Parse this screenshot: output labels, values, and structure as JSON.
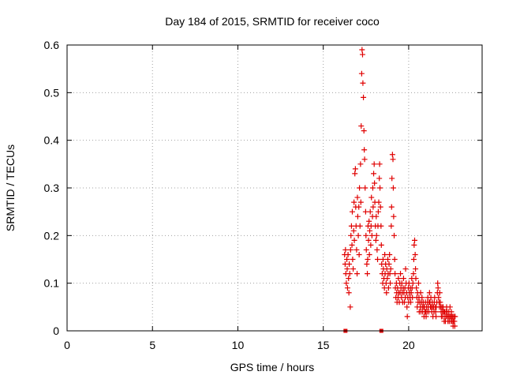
{
  "chart_data": {
    "type": "scatter",
    "title": "Day 184 of 2015, SRMTID for receiver coco",
    "xlabel": "GPS time / hours",
    "ylabel": "SRMTID / TECUs",
    "xlim": [
      0,
      24.3
    ],
    "ylim": [
      0,
      0.6
    ],
    "xticks": [
      "0",
      "5",
      "10",
      "15",
      "20"
    ],
    "yticks": [
      "0",
      "0.1",
      "0.2",
      "0.3",
      "0.4",
      "0.5",
      "0.6"
    ],
    "grid": true,
    "marker": "plus",
    "color": "#e00000",
    "series": [
      {
        "name": "SRMTID",
        "points": [
          [
            16.25,
            0.16
          ],
          [
            16.28,
            0.14
          ],
          [
            16.3,
            0.17
          ],
          [
            16.32,
            0.12
          ],
          [
            16.35,
            0.1
          ],
          [
            16.38,
            0.15
          ],
          [
            16.4,
            0.13
          ],
          [
            16.42,
            0.09
          ],
          [
            16.45,
            0.16
          ],
          [
            16.48,
            0.11
          ],
          [
            16.5,
            0.08
          ],
          [
            16.52,
            0.14
          ],
          [
            16.55,
            0.12
          ],
          [
            16.58,
            0.05
          ],
          [
            16.6,
            0.17
          ],
          [
            16.62,
            0.2
          ],
          [
            16.65,
            0.22
          ],
          [
            16.68,
            0.18
          ],
          [
            16.7,
            0.25
          ],
          [
            16.72,
            0.15
          ],
          [
            16.75,
            0.13
          ],
          [
            16.78,
            0.21
          ],
          [
            16.8,
            0.27
          ],
          [
            16.82,
            0.19
          ],
          [
            16.85,
            0.33
          ],
          [
            16.88,
            0.34
          ],
          [
            16.9,
            0.26
          ],
          [
            16.92,
            0.22
          ],
          [
            16.95,
            0.17
          ],
          [
            16.98,
            0.12
          ],
          [
            17.0,
            0.28
          ],
          [
            17.02,
            0.24
          ],
          [
            17.05,
            0.2
          ],
          [
            17.08,
            0.26
          ],
          [
            17.1,
            0.16
          ],
          [
            17.12,
            0.3
          ],
          [
            17.15,
            0.22
          ],
          [
            17.18,
            0.35
          ],
          [
            17.2,
            0.27
          ],
          [
            17.22,
            0.43
          ],
          [
            17.25,
            0.54
          ],
          [
            17.27,
            0.59
          ],
          [
            17.3,
            0.58
          ],
          [
            17.32,
            0.52
          ],
          [
            17.35,
            0.49
          ],
          [
            17.38,
            0.42
          ],
          [
            17.4,
            0.38
          ],
          [
            17.42,
            0.36
          ],
          [
            17.45,
            0.3
          ],
          [
            17.48,
            0.25
          ],
          [
            17.5,
            0.2
          ],
          [
            17.52,
            0.17
          ],
          [
            17.55,
            0.14
          ],
          [
            17.58,
            0.12
          ],
          [
            17.6,
            0.15
          ],
          [
            17.62,
            0.22
          ],
          [
            17.65,
            0.19
          ],
          [
            17.68,
            0.23
          ],
          [
            17.7,
            0.16
          ],
          [
            17.72,
            0.21
          ],
          [
            17.75,
            0.25
          ],
          [
            17.78,
            0.18
          ],
          [
            17.8,
            0.22
          ],
          [
            17.82,
            0.28
          ],
          [
            17.85,
            0.2
          ],
          [
            17.88,
            0.24
          ],
          [
            17.9,
            0.3
          ],
          [
            17.92,
            0.26
          ],
          [
            17.95,
            0.33
          ],
          [
            17.98,
            0.35
          ],
          [
            18.0,
            0.31
          ],
          [
            18.02,
            0.27
          ],
          [
            18.05,
            0.22
          ],
          [
            18.08,
            0.19
          ],
          [
            18.1,
            0.24
          ],
          [
            18.12,
            0.2
          ],
          [
            18.15,
            0.17
          ],
          [
            18.18,
            0.15
          ],
          [
            18.2,
            0.22
          ],
          [
            18.22,
            0.25
          ],
          [
            18.25,
            0.27
          ],
          [
            18.28,
            0.32
          ],
          [
            18.3,
            0.35
          ],
          [
            18.32,
            0.3
          ],
          [
            18.35,
            0.26
          ],
          [
            18.38,
            0.22
          ],
          [
            18.4,
            0.18
          ],
          [
            18.42,
            0.14
          ],
          [
            18.45,
            0.12
          ],
          [
            18.48,
            0.1
          ],
          [
            18.5,
            0.15
          ],
          [
            18.52,
            0.13
          ],
          [
            18.55,
            0.11
          ],
          [
            18.58,
            0.09
          ],
          [
            18.6,
            0.16
          ],
          [
            18.62,
            0.12
          ],
          [
            18.65,
            0.14
          ],
          [
            18.68,
            0.1
          ],
          [
            18.7,
            0.08
          ],
          [
            18.72,
            0.13
          ],
          [
            18.75,
            0.11
          ],
          [
            18.78,
            0.15
          ],
          [
            18.8,
            0.12
          ],
          [
            18.82,
            0.09
          ],
          [
            18.85,
            0.14
          ],
          [
            18.88,
            0.16
          ],
          [
            18.9,
            0.12
          ],
          [
            18.92,
            0.1
          ],
          [
            18.95,
            0.13
          ],
          [
            18.98,
            0.22
          ],
          [
            19.0,
            0.26
          ],
          [
            19.02,
            0.32
          ],
          [
            19.05,
            0.37
          ],
          [
            19.08,
            0.36
          ],
          [
            19.1,
            0.3
          ],
          [
            19.12,
            0.24
          ],
          [
            19.15,
            0.2
          ],
          [
            19.18,
            0.15
          ],
          [
            19.2,
            0.12
          ],
          [
            19.22,
            0.09
          ],
          [
            19.25,
            0.07
          ],
          [
            19.28,
            0.1
          ],
          [
            19.3,
            0.08
          ],
          [
            19.32,
            0.06
          ],
          [
            19.35,
            0.09
          ],
          [
            19.38,
            0.07
          ],
          [
            19.4,
            0.11
          ],
          [
            19.42,
            0.08
          ],
          [
            19.45,
            0.06
          ],
          [
            19.48,
            0.1
          ],
          [
            19.5,
            0.08
          ],
          [
            19.52,
            0.12
          ],
          [
            19.55,
            0.09
          ],
          [
            19.58,
            0.07
          ],
          [
            19.6,
            0.1
          ],
          [
            19.62,
            0.08
          ],
          [
            19.65,
            0.06
          ],
          [
            19.68,
            0.09
          ],
          [
            19.7,
            0.11
          ],
          [
            19.72,
            0.08
          ],
          [
            19.75,
            0.06
          ],
          [
            19.78,
            0.09
          ],
          [
            19.8,
            0.07
          ],
          [
            19.82,
            0.13
          ],
          [
            19.85,
            0.1
          ],
          [
            19.88,
            0.08
          ],
          [
            19.9,
            0.05
          ],
          [
            19.92,
            0.03
          ],
          [
            19.95,
            0.07
          ],
          [
            19.98,
            0.09
          ],
          [
            20.0,
            0.06
          ],
          [
            20.02,
            0.1
          ],
          [
            20.05,
            0.08
          ],
          [
            20.08,
            0.07
          ],
          [
            20.1,
            0.09
          ],
          [
            20.12,
            0.06
          ],
          [
            20.15,
            0.08
          ],
          [
            20.18,
            0.11
          ],
          [
            20.2,
            0.09
          ],
          [
            20.22,
            0.07
          ],
          [
            20.25,
            0.1
          ],
          [
            20.28,
            0.12
          ],
          [
            20.3,
            0.15
          ],
          [
            20.32,
            0.18
          ],
          [
            20.35,
            0.19
          ],
          [
            20.38,
            0.16
          ],
          [
            20.4,
            0.13
          ],
          [
            20.42,
            0.11
          ],
          [
            20.45,
            0.09
          ],
          [
            20.48,
            0.07
          ],
          [
            20.5,
            0.05
          ],
          [
            20.52,
            0.08
          ],
          [
            20.55,
            0.06
          ],
          [
            20.58,
            0.1
          ],
          [
            20.6,
            0.07
          ],
          [
            20.62,
            0.04
          ],
          [
            20.65,
            0.06
          ],
          [
            20.68,
            0.05
          ],
          [
            20.7,
            0.08
          ],
          [
            20.72,
            0.04
          ],
          [
            20.75,
            0.06
          ],
          [
            20.78,
            0.07
          ],
          [
            20.8,
            0.05
          ],
          [
            20.82,
            0.04
          ],
          [
            20.85,
            0.06
          ],
          [
            20.88,
            0.05
          ],
          [
            20.9,
            0.03
          ],
          [
            20.92,
            0.05
          ],
          [
            20.95,
            0.04
          ],
          [
            20.98,
            0.06
          ],
          [
            21.0,
            0.04
          ],
          [
            21.02,
            0.03
          ],
          [
            21.05,
            0.05
          ],
          [
            21.08,
            0.04
          ],
          [
            21.1,
            0.06
          ],
          [
            21.12,
            0.07
          ],
          [
            21.15,
            0.05
          ],
          [
            21.18,
            0.04
          ],
          [
            21.2,
            0.06
          ],
          [
            21.22,
            0.08
          ],
          [
            21.25,
            0.06
          ],
          [
            21.28,
            0.05
          ],
          [
            21.3,
            0.07
          ],
          [
            21.32,
            0.05
          ],
          [
            21.35,
            0.04
          ],
          [
            21.38,
            0.06
          ],
          [
            21.4,
            0.05
          ],
          [
            21.42,
            0.03
          ],
          [
            21.45,
            0.05
          ],
          [
            21.48,
            0.04
          ],
          [
            21.5,
            0.06
          ],
          [
            21.52,
            0.07
          ],
          [
            21.55,
            0.05
          ],
          [
            21.58,
            0.04
          ],
          [
            21.6,
            0.03
          ],
          [
            21.62,
            0.05
          ],
          [
            21.65,
            0.06
          ],
          [
            21.68,
            0.08
          ],
          [
            21.7,
            0.1
          ],
          [
            21.72,
            0.09
          ],
          [
            21.75,
            0.07
          ],
          [
            21.78,
            0.06
          ],
          [
            21.8,
            0.05
          ],
          [
            21.82,
            0.08
          ],
          [
            21.85,
            0.06
          ],
          [
            21.88,
            0.05
          ],
          [
            21.9,
            0.04
          ],
          [
            21.92,
            0.03
          ],
          [
            21.95,
            0.05
          ],
          [
            21.98,
            0.04
          ],
          [
            22.0,
            0.03
          ],
          [
            22.02,
            0.05
          ],
          [
            22.05,
            0.04
          ],
          [
            22.08,
            0.02
          ],
          [
            22.1,
            0.04
          ],
          [
            22.12,
            0.03
          ],
          [
            22.15,
            0.02
          ],
          [
            22.18,
            0.04
          ],
          [
            22.2,
            0.03
          ],
          [
            22.22,
            0.05
          ],
          [
            22.25,
            0.04
          ],
          [
            22.28,
            0.03
          ],
          [
            22.3,
            0.02
          ],
          [
            22.32,
            0.03
          ],
          [
            22.35,
            0.04
          ],
          [
            22.38,
            0.02
          ],
          [
            22.4,
            0.03
          ],
          [
            22.42,
            0.05
          ],
          [
            22.45,
            0.03
          ],
          [
            22.48,
            0.02
          ],
          [
            22.5,
            0.04
          ],
          [
            22.52,
            0.03
          ],
          [
            22.55,
            0.02
          ],
          [
            22.58,
            0.03
          ],
          [
            22.6,
            0.01
          ],
          [
            22.62,
            0.02
          ],
          [
            22.65,
            0.03
          ],
          [
            22.68,
            0.02
          ],
          [
            22.7,
            0.01
          ],
          [
            22.72,
            0.03
          ]
        ]
      }
    ],
    "zero_markers": [
      16.3,
      18.4
    ]
  }
}
